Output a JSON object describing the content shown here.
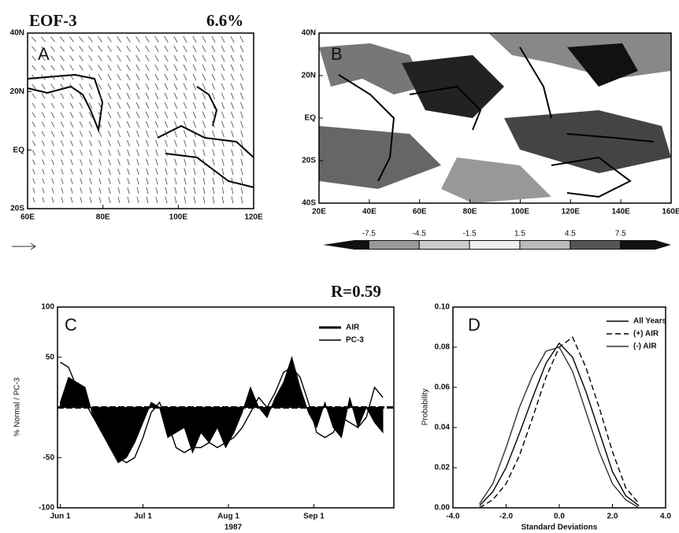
{
  "chart_data": [
    {
      "type": "vector-map",
      "title": "EOF-3",
      "annotation": "6.6%",
      "panel": "A",
      "xlim": [
        60,
        120
      ],
      "ylim": [
        -20,
        40
      ],
      "xticks": [
        {
          "value": 60,
          "label": "60E"
        },
        {
          "value": 80,
          "label": "80E"
        },
        {
          "value": 100,
          "label": "100E"
        },
        {
          "value": 120,
          "label": "120E"
        }
      ],
      "yticks": [
        {
          "value": 40,
          "label": "40N"
        },
        {
          "value": 20,
          "label": "20N"
        },
        {
          "value": 0,
          "label": "EQ"
        },
        {
          "value": -20,
          "label": "20S"
        }
      ]
    },
    {
      "type": "contour-map",
      "panel": "B",
      "xlim": [
        20,
        160
      ],
      "ylim": [
        -40,
        40
      ],
      "xticks": [
        {
          "value": 20,
          "label": "20E"
        },
        {
          "value": 40,
          "label": "40E"
        },
        {
          "value": 60,
          "label": "60E"
        },
        {
          "value": 80,
          "label": "80E"
        },
        {
          "value": 100,
          "label": "100E"
        },
        {
          "value": 120,
          "label": "120E"
        },
        {
          "value": 140,
          "label": "140E"
        },
        {
          "value": 160,
          "label": "160E"
        }
      ],
      "yticks": [
        {
          "value": 40,
          "label": "40N"
        },
        {
          "value": 20,
          "label": "20N"
        },
        {
          "value": 0,
          "label": "EQ"
        },
        {
          "value": -20,
          "label": "20S"
        },
        {
          "value": -40,
          "label": "40S"
        }
      ],
      "colorbar_ticks": [
        -7.5,
        -4.5,
        -1.5,
        1.5,
        4.5,
        7.5
      ]
    },
    {
      "type": "line",
      "panel": "C",
      "annotation": "R=0.59",
      "y_label": "% Normal / PC-3",
      "x_label": "1987",
      "xlim": [
        -1,
        121
      ],
      "ylim": [
        -100,
        100
      ],
      "xticks": [
        {
          "value": 0,
          "label": "Jun 1"
        },
        {
          "value": 30,
          "label": "Jul 1"
        },
        {
          "value": 61,
          "label": "Aug 1"
        },
        {
          "value": 92,
          "label": "Sep 1"
        }
      ],
      "yticks": [
        100,
        50,
        -50,
        -100
      ],
      "legend": "upper right",
      "x": [
        0,
        3,
        6,
        9,
        12,
        15,
        18,
        21,
        24,
        27,
        30,
        33,
        36,
        39,
        42,
        45,
        48,
        51,
        54,
        57,
        60,
        63,
        66,
        69,
        72,
        75,
        78,
        81,
        84,
        87,
        90,
        93,
        96,
        99,
        102,
        105,
        108,
        111,
        114,
        117
      ],
      "series": [
        {
          "name": "AIR",
          "color": "#000000",
          "style": "filled",
          "values": [
            5,
            30,
            25,
            20,
            -10,
            -25,
            -40,
            -55,
            -50,
            -35,
            -15,
            5,
            0,
            -30,
            -25,
            -20,
            -45,
            -25,
            -35,
            -20,
            -40,
            -25,
            -5,
            20,
            0,
            -10,
            10,
            25,
            50,
            20,
            -5,
            -20,
            5,
            -20,
            -30,
            10,
            -20,
            0,
            -15,
            -25
          ]
        },
        {
          "name": "PC-3",
          "color": "#000000",
          "style": "solid",
          "values": [
            45,
            40,
            20,
            5,
            -10,
            -20,
            -35,
            -50,
            -55,
            -50,
            -30,
            -5,
            5,
            -15,
            -40,
            -45,
            -40,
            -40,
            -35,
            -40,
            -35,
            -30,
            -20,
            -5,
            10,
            0,
            15,
            35,
            40,
            30,
            5,
            -25,
            -30,
            -25,
            -10,
            -15,
            -20,
            -10,
            20,
            10
          ]
        }
      ]
    },
    {
      "type": "line",
      "panel": "D",
      "y_label": "Probability",
      "x_label": "Standard Deviations",
      "xlim": [
        -4,
        4
      ],
      "ylim": [
        0,
        0.1
      ],
      "xticks": [
        {
          "value": -4,
          "label": "-4.0"
        },
        {
          "value": -2,
          "label": "-2.0"
        },
        {
          "value": 0,
          "label": "0.0"
        },
        {
          "value": 2,
          "label": "2.0"
        },
        {
          "value": 4,
          "label": "4.0"
        }
      ],
      "yticks": [
        {
          "value": 0,
          "label": "0.00"
        },
        {
          "value": 0.02,
          "label": "0.02"
        },
        {
          "value": 0.04,
          "label": "0.04"
        },
        {
          "value": 0.06,
          "label": "0.06"
        },
        {
          "value": 0.08,
          "label": "0.08"
        },
        {
          "value": 0.1,
          "label": "0.10"
        }
      ],
      "legend": "upper right",
      "x": [
        -3,
        -2.5,
        -2,
        -1.5,
        -1,
        -0.5,
        0,
        0.5,
        1,
        1.5,
        2,
        2.5,
        3
      ],
      "series": [
        {
          "name": "All Years",
          "color": "#000000",
          "style": "solid",
          "values": [
            0.001,
            0.008,
            0.02,
            0.037,
            0.055,
            0.072,
            0.082,
            0.075,
            0.058,
            0.038,
            0.018,
            0.006,
            0.001
          ]
        },
        {
          "name": "(+) AIR",
          "color": "#000000",
          "style": "dashed",
          "values": [
            0,
            0.004,
            0.012,
            0.026,
            0.045,
            0.065,
            0.08,
            0.085,
            0.07,
            0.05,
            0.028,
            0.01,
            0.002
          ]
        },
        {
          "name": "(-) AIR",
          "color": "#333333",
          "style": "solid",
          "values": [
            0.002,
            0.012,
            0.03,
            0.05,
            0.066,
            0.078,
            0.08,
            0.068,
            0.048,
            0.028,
            0.012,
            0.004,
            0
          ]
        }
      ]
    }
  ]
}
